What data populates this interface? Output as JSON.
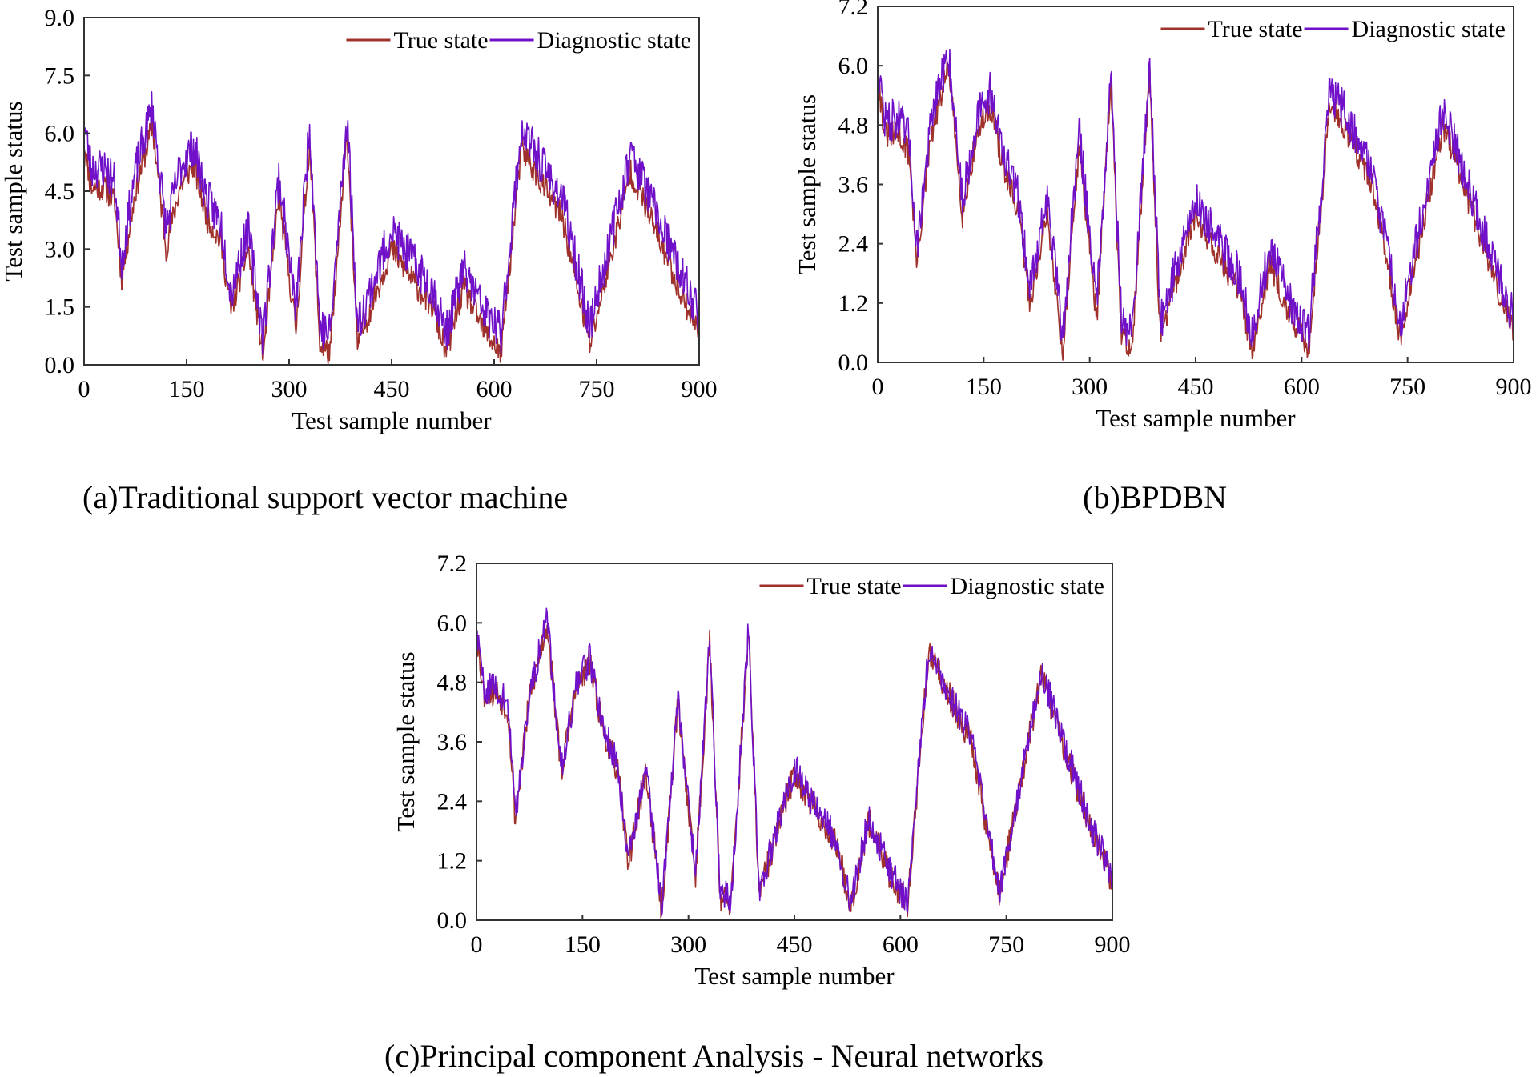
{
  "colors": {
    "true_state": "#A0302A",
    "diagnostic_state": "#7010C8",
    "axis": "#333333"
  },
  "chart_data": [
    {
      "id": "a",
      "type": "line",
      "caption": "(a)Traditional support vector machine",
      "xlabel": "Test sample number",
      "ylabel": "Test sample status",
      "xlim": [
        0,
        900
      ],
      "ylim": [
        0,
        9.0
      ],
      "xticks": [
        "0",
        "150",
        "300",
        "450",
        "600",
        "750",
        "900"
      ],
      "yticks": [
        "0.0",
        "1.5",
        "3.0",
        "4.5",
        "6.0",
        "7.5",
        "9.0"
      ],
      "grid": false,
      "legend_position": "top-right",
      "series": [
        {
          "name": "True state",
          "role": "true",
          "offset": 0,
          "noise": 0.35,
          "seed": 11
        },
        {
          "name": "Diagnostic state",
          "role": "diagnostic",
          "offset": 0.5,
          "noise": 0.55,
          "seed": 23
        }
      ],
      "envelope": {
        "x": [
          0,
          10,
          30,
          45,
          55,
          75,
          100,
          120,
          140,
          160,
          180,
          200,
          215,
          240,
          262,
          285,
          310,
          330,
          345,
          360,
          385,
          400,
          430,
          450,
          480,
          510,
          530,
          555,
          585,
          610,
          640,
          660,
          700,
          740,
          800,
          820,
          870,
          900
        ],
        "y": [
          5.8,
          4.6,
          4.6,
          4.2,
          2.2,
          4.5,
          6.2,
          3.0,
          4.6,
          5.2,
          3.8,
          3.2,
          1.4,
          3.0,
          0.2,
          4.4,
          0.9,
          5.8,
          0.5,
          0.3,
          6.0,
          0.5,
          2.0,
          3.0,
          2.2,
          1.5,
          0.3,
          2.0,
          0.9,
          0.3,
          5.6,
          5.0,
          3.8,
          0.5,
          5.0,
          4.2,
          2.0,
          0.8
        ]
      }
    },
    {
      "id": "b",
      "type": "line",
      "caption": "(b)BPDBN",
      "xlabel": "Test sample number",
      "ylabel": "Test sample status",
      "xlim": [
        0,
        900
      ],
      "ylim": [
        0,
        7.2
      ],
      "xticks": [
        "0",
        "150",
        "300",
        "450",
        "600",
        "750",
        "900"
      ],
      "yticks": [
        "0.0",
        "1.2",
        "2.4",
        "3.6",
        "4.8",
        "6.0",
        "7.2"
      ],
      "grid": false,
      "legend_position": "top-right",
      "series": [
        {
          "name": "True state",
          "role": "true",
          "offset": 0,
          "noise": 0.28,
          "seed": 31
        },
        {
          "name": "Diagnostic state",
          "role": "diagnostic",
          "offset": 0.3,
          "noise": 0.42,
          "seed": 47
        }
      ],
      "envelope": {
        "x": [
          0,
          10,
          30,
          45,
          55,
          75,
          100,
          120,
          140,
          160,
          180,
          200,
          215,
          240,
          262,
          285,
          310,
          330,
          345,
          360,
          385,
          400,
          430,
          450,
          480,
          510,
          530,
          555,
          585,
          610,
          640,
          660,
          700,
          740,
          800,
          820,
          870,
          900
        ],
        "y": [
          5.8,
          4.6,
          4.6,
          4.2,
          2.0,
          4.5,
          6.0,
          3.0,
          4.6,
          5.2,
          3.8,
          3.0,
          1.2,
          3.0,
          0.2,
          4.4,
          0.9,
          5.6,
          0.5,
          0.3,
          5.8,
          0.5,
          2.0,
          3.0,
          2.2,
          1.5,
          0.3,
          2.0,
          0.9,
          0.3,
          5.2,
          4.8,
          3.6,
          0.5,
          4.8,
          4.0,
          1.8,
          0.6
        ]
      }
    },
    {
      "id": "c",
      "type": "line",
      "caption": "(c)Principal component Analysis - Neural networks",
      "xlabel": "Test sample number",
      "ylabel": "Test sample status",
      "xlim": [
        0,
        900
      ],
      "ylim": [
        0,
        7.2
      ],
      "xticks": [
        "0",
        "150",
        "300",
        "450",
        "600",
        "750",
        "900"
      ],
      "yticks": [
        "0.0",
        "1.2",
        "2.4",
        "3.6",
        "4.8",
        "6.0",
        "7.2"
      ],
      "grid": false,
      "legend_position": "top-right",
      "series": [
        {
          "name": "True state",
          "role": "true",
          "offset": 0,
          "noise": 0.3,
          "seed": 53
        },
        {
          "name": "Diagnostic state",
          "role": "diagnostic",
          "offset": 0.08,
          "noise": 0.32,
          "seed": 59
        }
      ],
      "envelope": {
        "x": [
          0,
          10,
          30,
          45,
          55,
          75,
          100,
          120,
          140,
          160,
          180,
          200,
          215,
          240,
          262,
          285,
          310,
          330,
          345,
          360,
          385,
          400,
          430,
          450,
          480,
          510,
          530,
          555,
          585,
          610,
          640,
          660,
          700,
          740,
          800,
          820,
          870,
          900
        ],
        "y": [
          5.8,
          4.6,
          4.6,
          4.2,
          2.0,
          4.5,
          6.0,
          3.0,
          4.6,
          5.2,
          3.8,
          3.0,
          1.2,
          3.0,
          0.2,
          4.4,
          0.9,
          5.6,
          0.5,
          0.3,
          5.8,
          0.5,
          2.0,
          3.0,
          2.2,
          1.5,
          0.3,
          2.0,
          0.9,
          0.3,
          5.4,
          4.8,
          3.6,
          0.5,
          5.0,
          4.0,
          1.8,
          0.8
        ]
      }
    }
  ]
}
